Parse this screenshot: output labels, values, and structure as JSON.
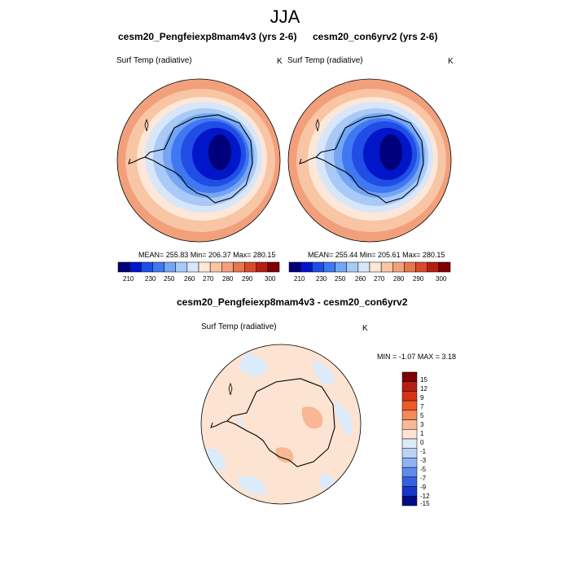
{
  "main_title": "JJA",
  "panels": [
    {
      "title": "cesm20_Pengfeiexp8mam4v3 (yrs 2-6)",
      "variable": "Surf Temp (radiative)",
      "units": "K",
      "stats": "MEAN= 255.83  Min= 206.37  Max= 280.15",
      "colorbar_ticks": [
        "210",
        "230",
        "250",
        "260",
        "270",
        "280",
        "290",
        "300"
      ]
    },
    {
      "title": "cesm20_con6yrv2 (yrs 2-6)",
      "variable": "Surf Temp (radiative)",
      "units": "K",
      "stats": "MEAN= 255.44  Min= 205.61  Max= 280.15",
      "colorbar_ticks": [
        "210",
        "230",
        "250",
        "260",
        "270",
        "280",
        "290",
        "300"
      ]
    }
  ],
  "diff_panel": {
    "title": "cesm20_Pengfeiexp8mam4v3 - cesm20_con6yrv2",
    "variable": "Surf Temp (radiative)",
    "units": "K",
    "stats": "MIN =  -1.07 MAX =   3.18",
    "colorbar_ticks": [
      "15",
      "12",
      "9",
      "7",
      "5",
      "3",
      "1",
      "0",
      "-1",
      "-3",
      "-5",
      "-7",
      "-9",
      "-12",
      "-15"
    ]
  },
  "colors": {
    "abs_scale": [
      "#00007a",
      "#0016c8",
      "#1f4de6",
      "#3f78f0",
      "#74a6f4",
      "#a9c9f7",
      "#d8e6fa",
      "#fde7d8",
      "#f8c5a5",
      "#f2a07c",
      "#e8764f",
      "#d84b2a",
      "#b51f12",
      "#7e0000"
    ],
    "diff_scale": [
      "#7e0000",
      "#b51f12",
      "#d83214",
      "#ee5a25",
      "#f4895a",
      "#f8b895",
      "#fde3d2",
      "#dcebfa",
      "#b9d3f7",
      "#8fb3f2",
      "#5f8cec",
      "#3560e0",
      "#1638c9",
      "#000c8a"
    ]
  }
}
